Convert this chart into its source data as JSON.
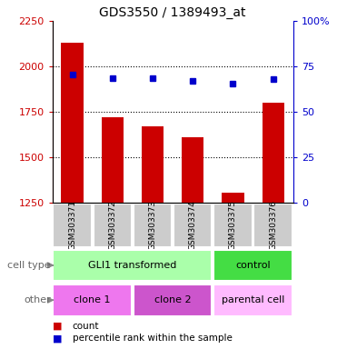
{
  "title": "GDS3550 / 1389493_at",
  "samples": [
    "GSM303371",
    "GSM303372",
    "GSM303373",
    "GSM303374",
    "GSM303375",
    "GSM303376"
  ],
  "counts": [
    2130,
    1720,
    1670,
    1610,
    1305,
    1800
  ],
  "percentiles": [
    70.5,
    68.5,
    68.5,
    67.0,
    65.5,
    68.0
  ],
  "ylim_left": [
    1250,
    2250
  ],
  "ylim_right": [
    0,
    100
  ],
  "yticks_left": [
    1250,
    1500,
    1750,
    2000,
    2250
  ],
  "yticks_right": [
    0,
    25,
    50,
    75,
    100
  ],
  "ytick_labels_right": [
    "0",
    "25",
    "50",
    "75",
    "100%"
  ],
  "bar_color": "#cc0000",
  "dot_color": "#0000cc",
  "bar_bottom": 1250,
  "cell_type_groups": [
    {
      "label": "GLI1 transformed",
      "start": 0,
      "end": 4,
      "color": "#aaffaa"
    },
    {
      "label": "control",
      "start": 4,
      "end": 6,
      "color": "#44dd44"
    }
  ],
  "other_groups": [
    {
      "label": "clone 1",
      "start": 0,
      "end": 2,
      "color": "#ee77ee"
    },
    {
      "label": "clone 2",
      "start": 2,
      "end": 4,
      "color": "#cc55cc"
    },
    {
      "label": "parental cell",
      "start": 4,
      "end": 6,
      "color": "#ffbbff"
    }
  ],
  "row_labels": [
    "cell type",
    "other"
  ],
  "legend_count_label": "count",
  "legend_pct_label": "percentile rank within the sample",
  "left_label_color": "#cc0000",
  "right_label_color": "#0000cc",
  "sample_box_color": "#cccccc",
  "grid_dotted_color": "#000000"
}
